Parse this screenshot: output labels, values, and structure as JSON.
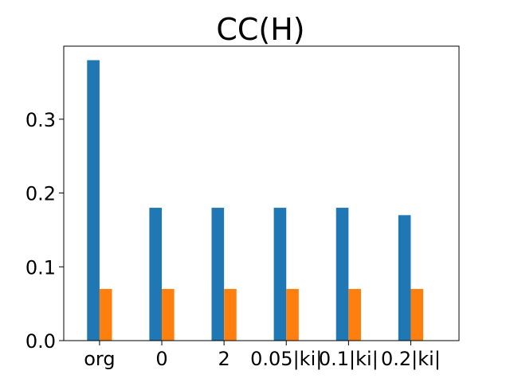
{
  "chart_data": {
    "type": "bar",
    "title": "CC(H)",
    "xlabel": "",
    "ylabel": "",
    "categories": [
      "org",
      "0",
      "2",
      "0.05|ki|",
      "0.1|ki|",
      "0.2|ki|"
    ],
    "series": [
      {
        "values": [
          0.38,
          0.18,
          0.18,
          0.18,
          0.18,
          0.17
        ],
        "color": "#1f77b4"
      },
      {
        "values": [
          0.07,
          0.07,
          0.07,
          0.07,
          0.07,
          0.07
        ],
        "color": "#ff7f0e"
      }
    ],
    "yticks": [
      0.0,
      0.1,
      0.2,
      0.3
    ],
    "ytick_labels": [
      "0.0",
      "0.1",
      "0.2",
      "0.3"
    ],
    "ylim": [
      0,
      0.399
    ],
    "grid": false,
    "legend": "none"
  }
}
